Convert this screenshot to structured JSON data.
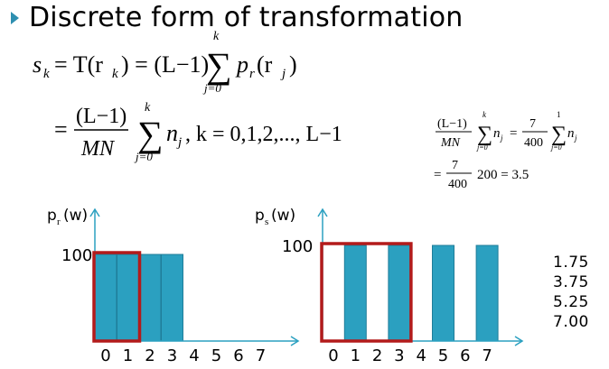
{
  "slide": {
    "title": "Discrete form of transformation"
  },
  "equation": {
    "line1_lhs": "s",
    "line1_lhs_sub": "k",
    "line1_mid": "= T(r",
    "line1_mid_sub": "k",
    "line1_rest": ") = (L−1)",
    "sum_top": "k",
    "sum_bottom": "j=0",
    "line1_term": "p",
    "line1_term_sub": "r",
    "line1_term_arg": "(r",
    "line1_term_arg_sub": "j",
    "line1_term_close": ")",
    "line2_eq": "=",
    "line2_num": "(L−1)",
    "line2_den": "MN",
    "line2_term": "n",
    "line2_term_sub": "j",
    "line2_cond": ",   k = 0,1,2,..., L−1"
  },
  "side_equation": {
    "num1": "(L−1)",
    "den1": "MN",
    "sum1_top": "k",
    "sum1_bottom": "j=0",
    "term1": "n",
    "term1_sub": "j",
    "eq": "=",
    "num2": "7",
    "den2": "400",
    "sum2_top": "1",
    "sum2_bottom": "j=0",
    "line2_eq": "=",
    "line2_num": "7",
    "line2_den": "400",
    "line2_rest": "200 = 3.5"
  },
  "chart_data": [
    {
      "type": "bar",
      "ylabel": "p",
      "ylabel_sub": "r",
      "ylabel_arg": "(w)",
      "y_tick": "100",
      "categories": [
        "0",
        "1",
        "2",
        "3",
        "4",
        "5",
        "6",
        "7"
      ],
      "values": [
        100,
        100,
        100,
        100,
        0,
        0,
        0,
        0
      ],
      "highlight": [
        "0",
        "1"
      ]
    },
    {
      "type": "bar",
      "ylabel": "p",
      "ylabel_sub": "s",
      "ylabel_arg": "(w)",
      "y_tick": "100",
      "categories": [
        "0",
        "1",
        "2",
        "3",
        "4",
        "5",
        "6",
        "7"
      ],
      "values": [
        0,
        100,
        0,
        100,
        0,
        100,
        0,
        100
      ],
      "highlight": [
        "0",
        "1",
        "2",
        "3"
      ]
    }
  ],
  "side_values": [
    "1.75",
    "3.75",
    "5.25",
    "7.00"
  ],
  "colors": {
    "bar": "#2ba0c0",
    "bar_edge": "#1f7d99",
    "highlight": "#b31b1b",
    "axis": "#2ba0c0",
    "bullet": "#2e8fb0"
  }
}
